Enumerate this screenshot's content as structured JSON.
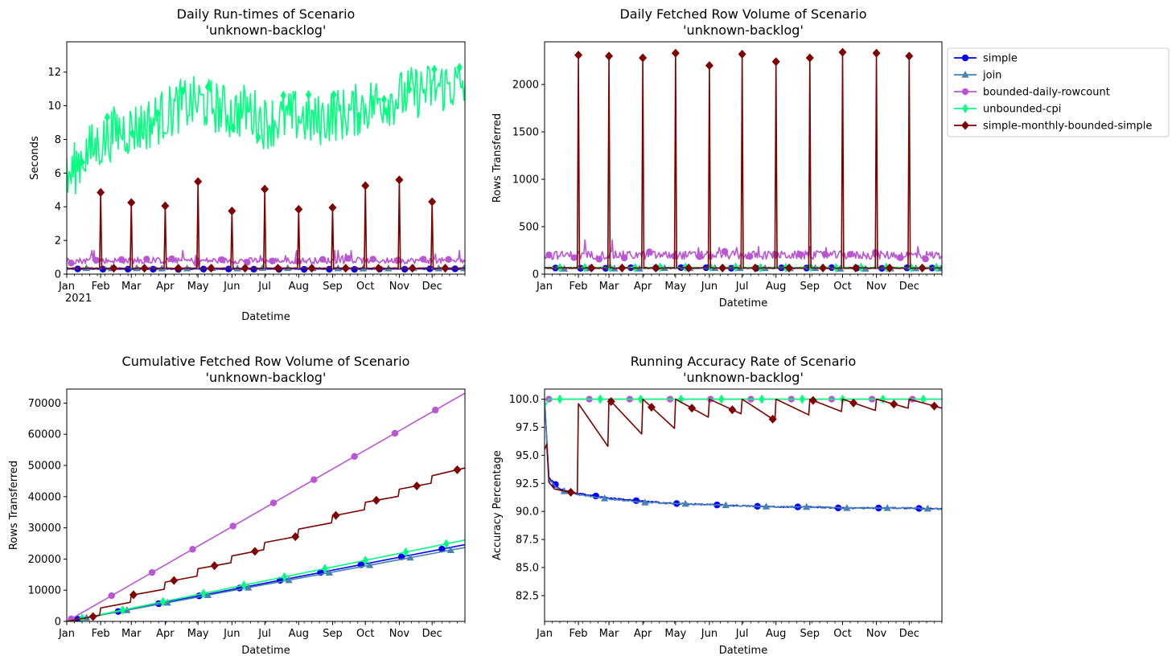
{
  "series_styles": [
    {
      "name": "simple",
      "color": "#0000ff",
      "marker": "circle"
    },
    {
      "name": "join",
      "color": "#4682b4",
      "marker": "triangle"
    },
    {
      "name": "bounded-daily-rowcount",
      "color": "#ba55d3",
      "marker": "circle"
    },
    {
      "name": "unbounded-cpi",
      "color": "#00ff7f",
      "marker": "diamond-thin"
    },
    {
      "name": "simple-monthly-bounded-simple",
      "color": "#800000",
      "marker": "diamond"
    }
  ],
  "legend": {
    "placement": "outside upper-right of top-right chart",
    "entries": [
      "simple",
      "join",
      "bounded-daily-rowcount",
      "unbounded-cpi",
      "simple-monthly-bounded-simple"
    ]
  },
  "chart_data": [
    {
      "type": "line",
      "title": "Daily Run-times of Scenario\n'unknown-backlog'",
      "title_lines": [
        "Daily Run-times of Scenario",
        "'unknown-backlog'"
      ],
      "xlabel": "Datetime",
      "ylabel": "Seconds",
      "x_ticks": [
        "Jan\n2021",
        "Feb",
        "Mar",
        "Apr",
        "May",
        "Jun",
        "Jul",
        "Aug",
        "Sep",
        "Oct",
        "Nov",
        "Dec"
      ],
      "x_range": [
        "2021-01-01",
        "2021-12-31"
      ],
      "ylim": [
        0,
        13.8
      ],
      "y_ticks": [
        0,
        2,
        4,
        6,
        8,
        10,
        12
      ],
      "grid": false,
      "series": [
        {
          "name": "simple",
          "approx_level": 0.3
        },
        {
          "name": "join",
          "approx_level": 0.35
        },
        {
          "name": "bounded-daily-rowcount",
          "approx_level": 0.8,
          "peaks": [
            1.4,
            1.2,
            1.1,
            1.0
          ]
        },
        {
          "name": "unbounded-cpi",
          "x": [
            "2021-01-01",
            "2021-01-15",
            "2021-02-01",
            "2021-02-15",
            "2021-03-01",
            "2021-03-15",
            "2021-04-01",
            "2021-04-15",
            "2021-05-01",
            "2021-05-15",
            "2021-06-01",
            "2021-06-15",
            "2021-07-01",
            "2021-07-15",
            "2021-08-01",
            "2021-08-15",
            "2021-09-01",
            "2021-09-15",
            "2021-10-01",
            "2021-10-15",
            "2021-11-01",
            "2021-11-15",
            "2021-12-01",
            "2021-12-15",
            "2021-12-31"
          ],
          "values": [
            5.5,
            7.0,
            7.8,
            8.5,
            8.6,
            8.9,
            9.5,
            10.0,
            10.2,
            10.0,
            9.5,
            9.8,
            9.0,
            9.2,
            9.4,
            9.0,
            9.5,
            9.5,
            10.0,
            10.3,
            10.5,
            10.8,
            11.0,
            11.2,
            11.2
          ]
        },
        {
          "name": "simple-monthly-bounded-simple",
          "baseline": 0.35,
          "spikes": [
            {
              "x": "2021-02-01",
              "value": 4.85
            },
            {
              "x": "2021-03-01",
              "value": 4.25
            },
            {
              "x": "2021-04-01",
              "value": 4.05
            },
            {
              "x": "2021-05-01",
              "value": 5.5
            },
            {
              "x": "2021-06-01",
              "value": 3.75
            },
            {
              "x": "2021-07-01",
              "value": 5.05
            },
            {
              "x": "2021-08-01",
              "value": 3.85
            },
            {
              "x": "2021-09-01",
              "value": 3.95
            },
            {
              "x": "2021-10-01",
              "value": 5.25
            },
            {
              "x": "2021-11-01",
              "value": 5.6
            },
            {
              "x": "2021-12-01",
              "value": 4.3
            }
          ]
        }
      ]
    },
    {
      "type": "line",
      "title": "Daily Fetched Row Volume of Scenario\n'unknown-backlog'",
      "title_lines": [
        "Daily Fetched Row Volume of Scenario",
        "'unknown-backlog'"
      ],
      "xlabel": "Datetime",
      "ylabel": "Rows Transferred",
      "x_ticks": [
        "Jan",
        "Feb",
        "Mar",
        "Apr",
        "May",
        "Jun",
        "Jul",
        "Aug",
        "Sep",
        "Oct",
        "Nov",
        "Dec"
      ],
      "x_range": [
        "2021-01-01",
        "2021-12-31"
      ],
      "ylim": [
        0,
        2450
      ],
      "y_ticks": [
        0,
        500,
        1000,
        1500,
        2000
      ],
      "grid": false,
      "series": [
        {
          "name": "simple",
          "approx_level": 65
        },
        {
          "name": "join",
          "approx_level": 60
        },
        {
          "name": "bounded-daily-rowcount",
          "approx_level": 200,
          "peaks": [
            360,
            290,
            280,
            360
          ]
        },
        {
          "name": "unbounded-cpi",
          "approx_level": 70
        },
        {
          "name": "simple-monthly-bounded-simple",
          "baseline": 65,
          "spikes": [
            {
              "x": "2021-02-01",
              "value": 2310
            },
            {
              "x": "2021-03-01",
              "value": 2300
            },
            {
              "x": "2021-04-01",
              "value": 2280
            },
            {
              "x": "2021-05-01",
              "value": 2330
            },
            {
              "x": "2021-06-01",
              "value": 2200
            },
            {
              "x": "2021-07-01",
              "value": 2320
            },
            {
              "x": "2021-08-01",
              "value": 2240
            },
            {
              "x": "2021-09-01",
              "value": 2280
            },
            {
              "x": "2021-10-01",
              "value": 2340
            },
            {
              "x": "2021-11-01",
              "value": 2330
            },
            {
              "x": "2021-12-01",
              "value": 2300
            }
          ]
        }
      ]
    },
    {
      "type": "line",
      "title": "Cumulative Fetched Row Volume of Scenario\n'unknown-backlog'",
      "title_lines": [
        "Cumulative Fetched Row Volume of Scenario",
        "'unknown-backlog'"
      ],
      "xlabel": "Datetime",
      "ylabel": "Rows Transferred",
      "x_ticks": [
        "Jan",
        "Feb",
        "Mar",
        "Apr",
        "May",
        "Jun",
        "Jul",
        "Aug",
        "Sep",
        "Oct",
        "Nov",
        "Dec"
      ],
      "x_range": [
        "2021-01-01",
        "2021-12-31"
      ],
      "ylim": [
        0,
        74500
      ],
      "y_ticks": [
        0,
        10000,
        20000,
        30000,
        40000,
        50000,
        60000,
        70000
      ],
      "grid": false,
      "series": [
        {
          "name": "simple",
          "x": [
            "2021-01-01",
            "2021-12-31"
          ],
          "values": [
            0,
            24600
          ]
        },
        {
          "name": "join",
          "x": [
            "2021-01-01",
            "2021-12-31"
          ],
          "values": [
            0,
            23700
          ]
        },
        {
          "name": "bounded-daily-rowcount",
          "x": [
            "2021-01-01",
            "2021-12-31"
          ],
          "values": [
            0,
            73200
          ]
        },
        {
          "name": "unbounded-cpi",
          "x": [
            "2021-01-01",
            "2021-12-31"
          ],
          "values": [
            0,
            26100
          ]
        },
        {
          "name": "simple-monthly-bounded-simple",
          "x": [
            "2021-01-01",
            "2021-01-31",
            "2021-02-01",
            "2021-02-28",
            "2021-03-01",
            "2021-03-31",
            "2021-04-01",
            "2021-04-30",
            "2021-05-01",
            "2021-05-31",
            "2021-06-01",
            "2021-06-30",
            "2021-07-01",
            "2021-07-31",
            "2021-08-01",
            "2021-08-31",
            "2021-09-01",
            "2021-09-30",
            "2021-10-01",
            "2021-10-31",
            "2021-11-01",
            "2021-11-30",
            "2021-12-01",
            "2021-12-31"
          ],
          "values": [
            0,
            1950,
            4300,
            6100,
            8400,
            10300,
            12600,
            14500,
            16900,
            18800,
            21000,
            23000,
            25300,
            27300,
            29600,
            31600,
            33800,
            35800,
            38200,
            40100,
            42400,
            44300,
            46700,
            49200
          ]
        }
      ]
    },
    {
      "type": "line",
      "title": "Running Accuracy Rate of Scenario\n'unknown-backlog'",
      "title_lines": [
        "Running Accuracy Rate of Scenario",
        "'unknown-backlog'"
      ],
      "xlabel": "Datetime",
      "ylabel": "Accuracy Percentage",
      "x_ticks": [
        "Jan",
        "Feb",
        "Mar",
        "Apr",
        "May",
        "Jun",
        "Jul",
        "Aug",
        "Sep",
        "Oct",
        "Nov",
        "Dec"
      ],
      "x_range": [
        "2021-01-01",
        "2021-12-31"
      ],
      "ylim": [
        80.2,
        100.9
      ],
      "y_ticks": [
        82.5,
        85.0,
        87.5,
        90.0,
        92.5,
        95.0,
        97.5,
        100.0
      ],
      "grid": false,
      "series": [
        {
          "name": "simple",
          "x": [
            "2021-01-01",
            "2021-01-05",
            "2021-01-15",
            "2021-02-01",
            "2021-03-01",
            "2021-04-01",
            "2021-05-01",
            "2021-06-01",
            "2021-07-01",
            "2021-08-01",
            "2021-09-01",
            "2021-10-01",
            "2021-11-01",
            "2021-12-01",
            "2021-12-31"
          ],
          "values": [
            100,
            93.0,
            92.0,
            91.6,
            91.2,
            90.9,
            90.7,
            90.6,
            90.5,
            90.4,
            90.4,
            90.3,
            90.3,
            90.3,
            90.2
          ]
        },
        {
          "name": "join",
          "x": [
            "2021-01-01",
            "2021-01-05",
            "2021-01-15",
            "2021-02-01",
            "2021-03-01",
            "2021-04-01",
            "2021-05-01",
            "2021-06-01",
            "2021-07-01",
            "2021-08-01",
            "2021-09-01",
            "2021-10-01",
            "2021-11-01",
            "2021-12-01",
            "2021-12-31"
          ],
          "values": [
            100,
            92.8,
            91.9,
            91.5,
            91.1,
            90.8,
            90.7,
            90.6,
            90.5,
            90.4,
            90.4,
            90.3,
            90.3,
            90.3,
            90.2
          ]
        },
        {
          "name": "bounded-daily-rowcount",
          "x": [
            "2021-01-01",
            "2021-12-31"
          ],
          "values": [
            100,
            100
          ]
        },
        {
          "name": "unbounded-cpi",
          "x": [
            "2021-01-01",
            "2021-01-05",
            "2021-12-31"
          ],
          "values": [
            99.3,
            100,
            100
          ]
        },
        {
          "name": "simple-monthly-bounded-simple",
          "x": [
            "2021-01-01",
            "2021-01-03",
            "2021-01-05",
            "2021-01-10",
            "2021-01-20",
            "2021-01-31",
            "2021-02-01",
            "2021-02-28",
            "2021-03-01",
            "2021-03-31",
            "2021-04-01",
            "2021-04-30",
            "2021-05-01",
            "2021-05-31",
            "2021-06-01",
            "2021-06-30",
            "2021-07-01",
            "2021-07-31",
            "2021-08-01",
            "2021-08-31",
            "2021-09-01",
            "2021-09-30",
            "2021-10-01",
            "2021-10-31",
            "2021-11-01",
            "2021-11-30",
            "2021-12-01",
            "2021-12-31"
          ],
          "values": [
            95.5,
            96.0,
            92.6,
            92.0,
            91.8,
            91.6,
            99.6,
            95.8,
            100,
            96.9,
            100,
            97.4,
            100,
            98.4,
            100,
            98.7,
            100,
            98.1,
            100,
            98.6,
            100,
            98.9,
            100,
            99.0,
            100,
            99.2,
            100,
            99.2
          ]
        }
      ]
    }
  ]
}
